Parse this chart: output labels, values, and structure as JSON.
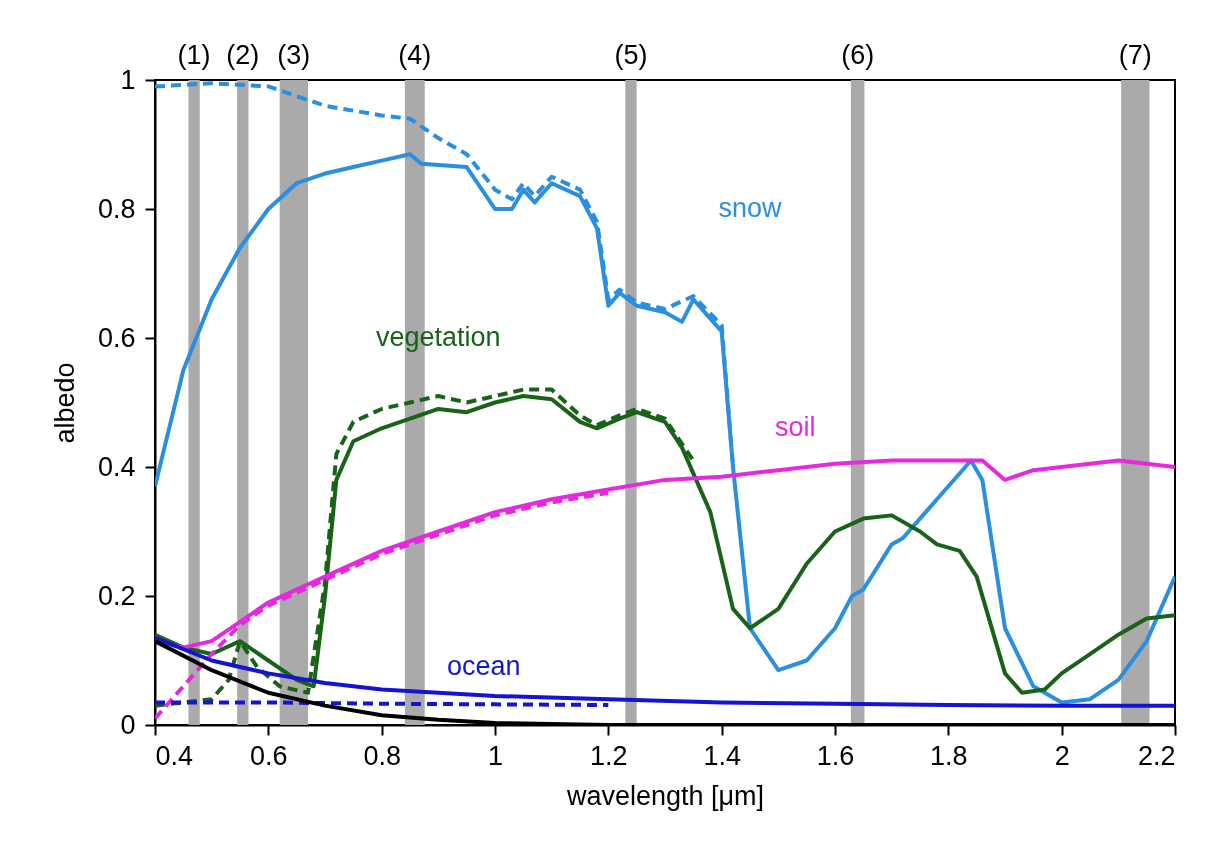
{
  "chart_data": {
    "type": "line",
    "xlabel": "wavelength [μm]",
    "ylabel": "albedo",
    "xlim": [
      0.4,
      2.2
    ],
    "ylim": [
      0,
      1
    ],
    "xticks": [
      0.4,
      0.6,
      0.8,
      1,
      1.2,
      1.4,
      1.6,
      1.8,
      2,
      2.2
    ],
    "yticks": [
      0,
      0.2,
      0.4,
      0.6,
      0.8,
      1
    ],
    "grid": false,
    "marker": "none",
    "bands": [
      {
        "axis": "x",
        "from": 0.459,
        "to": 0.479,
        "label": "(1)",
        "color": "#aaaaaa"
      },
      {
        "axis": "x",
        "from": 0.545,
        "to": 0.565,
        "label": "(2)",
        "color": "#aaaaaa"
      },
      {
        "axis": "x",
        "from": 0.62,
        "to": 0.67,
        "label": "(3)",
        "color": "#aaaaaa"
      },
      {
        "axis": "x",
        "from": 0.841,
        "to": 0.876,
        "label": "(4)",
        "color": "#aaaaaa"
      },
      {
        "axis": "x",
        "from": 1.23,
        "to": 1.25,
        "label": "(5)",
        "color": "#aaaaaa"
      },
      {
        "axis": "x",
        "from": 1.628,
        "to": 1.652,
        "label": "(6)",
        "color": "#aaaaaa"
      },
      {
        "axis": "x",
        "from": 2.105,
        "to": 2.155,
        "label": "(7)",
        "color": "#aaaaaa"
      }
    ],
    "series": [
      {
        "color": "#2a8fe0",
        "line_style": "dashed",
        "x": [
          0.4,
          0.5,
          0.6,
          0.7,
          0.8,
          0.85,
          0.9,
          0.95,
          1.0,
          1.03,
          1.05,
          1.07,
          1.1,
          1.15,
          1.18,
          1.2,
          1.22,
          1.25,
          1.3,
          1.35,
          1.4,
          1.42
        ],
        "values": [
          0.99,
          0.995,
          0.99,
          0.96,
          0.945,
          0.94,
          0.91,
          0.885,
          0.83,
          0.815,
          0.84,
          0.82,
          0.85,
          0.83,
          0.78,
          0.66,
          0.675,
          0.655,
          0.645,
          0.665,
          0.62,
          0.4
        ]
      },
      {
        "name": "snow",
        "color": "#2a8fe0",
        "line_style": "solid",
        "x": [
          0.4,
          0.45,
          0.5,
          0.55,
          0.6,
          0.65,
          0.7,
          0.75,
          0.8,
          0.85,
          0.87,
          0.95,
          1.0,
          1.03,
          1.05,
          1.07,
          1.1,
          1.15,
          1.18,
          1.2,
          1.22,
          1.25,
          1.3,
          1.33,
          1.35,
          1.38,
          1.4,
          1.42,
          1.45,
          1.5,
          1.55,
          1.6,
          1.63,
          1.65,
          1.7,
          1.72,
          1.78,
          1.84,
          1.86,
          1.9,
          1.95,
          2.0,
          2.05,
          2.1,
          2.15,
          2.2
        ],
        "values": [
          0.37,
          0.55,
          0.66,
          0.74,
          0.8,
          0.84,
          0.855,
          0.865,
          0.875,
          0.885,
          0.87,
          0.865,
          0.8,
          0.8,
          0.83,
          0.81,
          0.84,
          0.82,
          0.77,
          0.65,
          0.67,
          0.65,
          0.64,
          0.625,
          0.66,
          0.63,
          0.61,
          0.4,
          0.15,
          0.085,
          0.1,
          0.15,
          0.2,
          0.21,
          0.28,
          0.29,
          0.35,
          0.41,
          0.38,
          0.15,
          0.06,
          0.035,
          0.04,
          0.07,
          0.13,
          0.23
        ]
      },
      {
        "color": "#186318",
        "line_style": "dashed",
        "x": [
          0.4,
          0.45,
          0.5,
          0.53,
          0.55,
          0.58,
          0.62,
          0.67,
          0.7,
          0.72,
          0.75,
          0.8,
          0.85,
          0.9,
          0.95,
          1.0,
          1.05,
          1.1,
          1.15,
          1.18,
          1.22,
          1.25,
          1.3,
          1.35
        ],
        "values": [
          0.03,
          0.035,
          0.04,
          0.07,
          0.13,
          0.09,
          0.06,
          0.05,
          0.22,
          0.42,
          0.47,
          0.49,
          0.5,
          0.51,
          0.5,
          0.51,
          0.52,
          0.52,
          0.48,
          0.465,
          0.48,
          0.49,
          0.475,
          0.41
        ]
      },
      {
        "name": "vegetation",
        "color": "#186318",
        "line_style": "solid",
        "x": [
          0.4,
          0.45,
          0.5,
          0.55,
          0.6,
          0.65,
          0.68,
          0.7,
          0.72,
          0.75,
          0.8,
          0.85,
          0.9,
          0.95,
          1.0,
          1.05,
          1.1,
          1.15,
          1.18,
          1.22,
          1.25,
          1.3,
          1.33,
          1.38,
          1.42,
          1.45,
          1.5,
          1.55,
          1.6,
          1.65,
          1.7,
          1.75,
          1.78,
          1.82,
          1.85,
          1.9,
          1.93,
          1.97,
          2.0,
          2.05,
          2.1,
          2.15,
          2.2
        ],
        "values": [
          0.14,
          0.12,
          0.11,
          0.13,
          0.1,
          0.07,
          0.06,
          0.2,
          0.38,
          0.44,
          0.46,
          0.475,
          0.49,
          0.485,
          0.5,
          0.51,
          0.505,
          0.47,
          0.46,
          0.475,
          0.485,
          0.47,
          0.43,
          0.33,
          0.18,
          0.15,
          0.18,
          0.25,
          0.3,
          0.32,
          0.325,
          0.3,
          0.28,
          0.27,
          0.23,
          0.08,
          0.05,
          0.055,
          0.08,
          0.11,
          0.14,
          0.165,
          0.17
        ]
      },
      {
        "color": "#e628e0",
        "line_style": "dashed",
        "x": [
          0.4,
          0.45,
          0.5,
          0.55,
          0.6,
          0.7,
          0.8,
          0.9,
          1.0,
          1.1,
          1.2
        ],
        "values": [
          0.01,
          0.06,
          0.11,
          0.155,
          0.185,
          0.225,
          0.265,
          0.295,
          0.325,
          0.345,
          0.36
        ]
      },
      {
        "name": "soil",
        "color": "#e628e0",
        "line_style": "solid",
        "x": [
          0.4,
          0.45,
          0.5,
          0.55,
          0.6,
          0.7,
          0.8,
          0.9,
          1.0,
          1.1,
          1.2,
          1.3,
          1.4,
          1.5,
          1.6,
          1.7,
          1.8,
          1.86,
          1.9,
          1.95,
          2.0,
          2.1,
          2.2
        ],
        "values": [
          0.13,
          0.12,
          0.13,
          0.16,
          0.19,
          0.23,
          0.27,
          0.3,
          0.33,
          0.35,
          0.365,
          0.38,
          0.385,
          0.395,
          0.405,
          0.41,
          0.41,
          0.41,
          0.38,
          0.395,
          0.4,
          0.41,
          0.4
        ]
      },
      {
        "color": "#1414d2",
        "line_style": "dashed",
        "x": [
          0.4,
          0.6,
          0.8,
          1.0,
          1.2
        ],
        "values": [
          0.035,
          0.035,
          0.033,
          0.032,
          0.031
        ]
      },
      {
        "name": "ocean",
        "color": "#1414d2",
        "line_style": "solid",
        "x": [
          0.4,
          0.5,
          0.6,
          0.7,
          0.8,
          1.0,
          1.2,
          1.4,
          1.6,
          1.8,
          2.0,
          2.2
        ],
        "values": [
          0.135,
          0.1,
          0.08,
          0.065,
          0.055,
          0.045,
          0.04,
          0.035,
          0.033,
          0.031,
          0.03,
          0.03
        ]
      },
      {
        "color": "#000000",
        "line_style": "solid",
        "x": [
          0.4,
          0.5,
          0.6,
          0.7,
          0.8,
          0.9,
          1.0,
          1.2,
          1.6,
          2.2
        ],
        "values": [
          0.13,
          0.085,
          0.05,
          0.03,
          0.015,
          0.008,
          0.003,
          0,
          0,
          0
        ]
      }
    ]
  }
}
